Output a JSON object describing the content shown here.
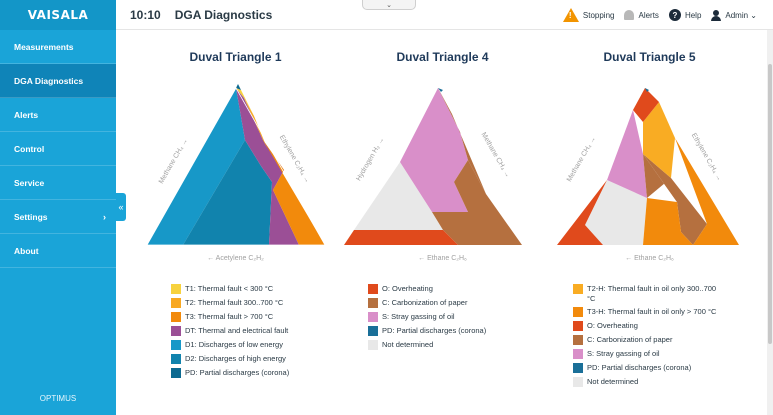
{
  "sidebar": {
    "logo": "VAISALA",
    "items": [
      {
        "label": "Measurements"
      },
      {
        "label": "DGA Diagnostics"
      },
      {
        "label": "Alerts"
      },
      {
        "label": "Control"
      },
      {
        "label": "Service"
      },
      {
        "label": "Settings"
      },
      {
        "label": "About"
      }
    ],
    "footer": "OPTIMUS"
  },
  "header": {
    "time": "10:10",
    "title": "DGA Diagnostics",
    "stopping": "Stopping",
    "alerts": "Alerts",
    "help": "Help",
    "admin": "Admin ⌄"
  },
  "panels": [
    {
      "title": "Duval Triangle 1",
      "left_axis": "Methane CH₄ →",
      "right_axis": "Ethylene C₂H₄ →",
      "bottom_axis": "← Acetylene C₂H₂",
      "legend": [
        {
          "label": "T1: Thermal fault < 300 °C",
          "color": "#f7d23e"
        },
        {
          "label": "T2: Thermal fault 300..700 °C",
          "color": "#f8a821"
        },
        {
          "label": "T3: Thermal fault > 700 °C",
          "color": "#f28a0c"
        },
        {
          "label": "DT: Thermal and electrical fault",
          "color": "#9b4f96"
        },
        {
          "label": "D1: Discharges of low energy",
          "color": "#1798c8"
        },
        {
          "label": "D2: Discharges of high energy",
          "color": "#1183ad"
        },
        {
          "label": "PD: Partial discharges (corona)",
          "color": "#0d6a91"
        }
      ]
    },
    {
      "title": "Duval Triangle 4",
      "left_axis": "Hydrogen H₂ →",
      "right_axis": "Methane CH₄ →",
      "bottom_axis": "← Ethane C₂H₆",
      "legend": [
        {
          "label": "O: Overheating",
          "color": "#e04a1c"
        },
        {
          "label": "C: Carbonization of paper",
          "color": "#b5703f"
        },
        {
          "label": "S: Stray gassing of oil",
          "color": "#d98fc9"
        },
        {
          "label": "PD: Partial discharges (corona)",
          "color": "#1a6f98"
        },
        {
          "label": "Not determined",
          "color": "#e8e8e8"
        }
      ]
    },
    {
      "title": "Duval Triangle 5",
      "left_axis": "Methane CH₄ →",
      "right_axis": "Ethylene C₂H₄ →",
      "bottom_axis": "← Ethane C₂H₆",
      "legend": [
        {
          "label": "T2-H: Thermal fault in oil only 300..700 °C",
          "color": "#f9ac23"
        },
        {
          "label": "T3-H: Thermal fault in oil only > 700 °C",
          "color": "#f28a0c"
        },
        {
          "label": "O: Overheating",
          "color": "#e04a1c"
        },
        {
          "label": "C: Carbonization of paper",
          "color": "#b5703f"
        },
        {
          "label": "S: Stray gassing of oil",
          "color": "#d98fc9"
        },
        {
          "label": "PD: Partial discharges (corona)",
          "color": "#1a6f98"
        },
        {
          "label": "Not determined",
          "color": "#e8e8e8"
        }
      ]
    }
  ]
}
